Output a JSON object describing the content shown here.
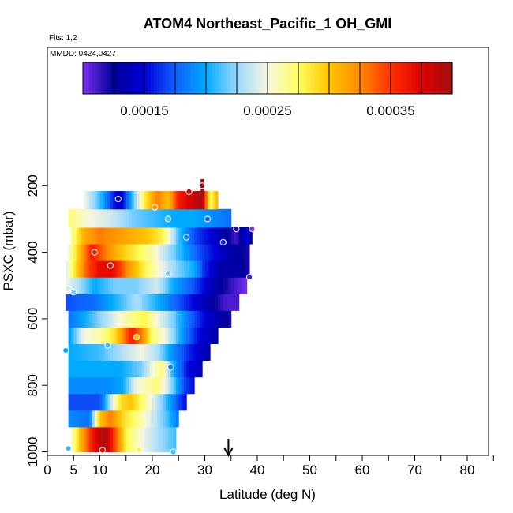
{
  "chart_data": {
    "type": "heatmap",
    "title": "ATOM4 Northeast_Pacific_1 OH_GMI",
    "flights_label": "Flts: 1,2",
    "date_label": "MMDD: 0424,0427",
    "xlabel": "Latitude (deg N)",
    "ylabel": "PSXC (mbar)",
    "xlim": [
      0,
      85
    ],
    "ylim": [
      1000,
      100
    ],
    "x_ticks": [
      0,
      5,
      10,
      20,
      30,
      40,
      50,
      60,
      70,
      80
    ],
    "x_tick_labels": [
      "0",
      "5",
      "10",
      "20",
      "30",
      "40",
      "50",
      "60",
      "70",
      "80"
    ],
    "x_minor_ticks": [
      15,
      25,
      35,
      45,
      55,
      65,
      75,
      85
    ],
    "y_ticks": [
      200,
      400,
      600,
      800,
      1000
    ],
    "y_tick_labels": [
      "200",
      "400",
      "600",
      "800",
      "1000"
    ],
    "colorbar": {
      "min": 0.0001,
      "max": 0.0004,
      "tick_values": [
        0.00015,
        0.00025,
        0.00035
      ],
      "tick_labels": [
        "0.00015",
        "0.00025",
        "0.00035"
      ],
      "colors": [
        "#7b2ff2",
        "#00009a",
        "#0000d8",
        "#1060ff",
        "#00aaff",
        "#9ad8ff",
        "#f6f6e0",
        "#ffff60",
        "#ffc400",
        "#ff8c00",
        "#ff3000",
        "#e00000",
        "#a01010"
      ]
    },
    "rows": [
      {
        "p": 950,
        "lat_min": 4.5,
        "lat_max": 24.5,
        "cols": [
          [
            4.5,
            0.00025
          ],
          [
            6.5,
            0.00031
          ],
          [
            9.0,
            0.00037
          ],
          [
            11.0,
            0.0004
          ],
          [
            13.0,
            0.00034
          ],
          [
            15.0,
            0.00028
          ],
          [
            18.0,
            0.00025
          ],
          [
            21.0,
            0.00023
          ],
          [
            24.5,
            0.00021
          ]
        ]
      },
      {
        "p": 900,
        "lat_min": 4.0,
        "lat_max": 25.0,
        "cols": [
          [
            4.0,
            0.00019
          ],
          [
            8.0,
            0.00018
          ],
          [
            10.0,
            0.0003
          ],
          [
            12.0,
            0.00033
          ],
          [
            14.5,
            0.00029
          ],
          [
            17.0,
            0.00027
          ],
          [
            20.0,
            0.00024
          ],
          [
            23.0,
            0.00021
          ],
          [
            25.0,
            0.00018
          ]
        ]
      },
      {
        "p": 850,
        "lat_min": 4.0,
        "lat_max": 26.5,
        "cols": [
          [
            4.0,
            0.00017
          ],
          [
            10.0,
            0.00017
          ],
          [
            12.0,
            0.00023
          ],
          [
            14.0,
            0.00029
          ],
          [
            16.0,
            0.0003
          ],
          [
            19.0,
            0.00026
          ],
          [
            22.0,
            0.00022
          ],
          [
            25.0,
            0.00017
          ],
          [
            26.5,
            0.00015
          ]
        ]
      },
      {
        "p": 800,
        "lat_min": 4.0,
        "lat_max": 28.0,
        "cols": [
          [
            4.0,
            0.00019
          ],
          [
            12.0,
            0.00019
          ],
          [
            14.5,
            0.0002
          ],
          [
            17.0,
            0.00025
          ],
          [
            19.0,
            0.00026
          ],
          [
            21.0,
            0.00027
          ],
          [
            23.0,
            0.00024
          ],
          [
            26.0,
            0.00017
          ],
          [
            28.0,
            0.00015
          ]
        ]
      },
      {
        "p": 750,
        "lat_min": 4.0,
        "lat_max": 29.5,
        "cols": [
          [
            4.0,
            0.0002
          ],
          [
            14.0,
            0.0002
          ],
          [
            18.0,
            0.00022
          ],
          [
            20.0,
            0.00025
          ],
          [
            22.0,
            0.00027
          ],
          [
            24.0,
            0.0002
          ],
          [
            27.0,
            0.00015
          ],
          [
            29.5,
            0.00014
          ]
        ]
      },
      {
        "p": 700,
        "lat_min": 4.0,
        "lat_max": 31.0,
        "cols": [
          [
            4.0,
            0.0002
          ],
          [
            10.0,
            0.00021
          ],
          [
            14.0,
            0.00023
          ],
          [
            18.0,
            0.00025
          ],
          [
            21.0,
            0.00023
          ],
          [
            24.0,
            0.00019
          ],
          [
            27.0,
            0.00016
          ],
          [
            31.0,
            0.00013
          ]
        ]
      },
      {
        "p": 650,
        "lat_min": 4.0,
        "lat_max": 32.5,
        "cols": [
          [
            4.0,
            0.00019
          ],
          [
            7.0,
            0.00025
          ],
          [
            10.0,
            0.00026
          ],
          [
            13.0,
            0.00029
          ],
          [
            16.0,
            0.00036
          ],
          [
            18.0,
            0.00033
          ],
          [
            20.0,
            0.00027
          ],
          [
            22.5,
            0.00025
          ],
          [
            26.0,
            0.00019
          ],
          [
            29.0,
            0.00015
          ],
          [
            32.5,
            0.00013
          ]
        ]
      },
      {
        "p": 600,
        "lat_min": 4.0,
        "lat_max": 35.0,
        "cols": [
          [
            4.0,
            0.00018
          ],
          [
            7.0,
            0.0002
          ],
          [
            11.0,
            0.00023
          ],
          [
            15.0,
            0.00026
          ],
          [
            18.5,
            0.00028
          ],
          [
            21.0,
            0.00025
          ],
          [
            24.0,
            0.00022
          ],
          [
            27.0,
            0.00018
          ],
          [
            30.0,
            0.00015
          ],
          [
            33.0,
            0.00013
          ],
          [
            35.0,
            0.00012
          ]
        ]
      },
      {
        "p": 550,
        "lat_min": 3.5,
        "lat_max": 36.5,
        "cols": [
          [
            3.5,
            0.00017
          ],
          [
            9.0,
            0.00018
          ],
          [
            14.0,
            0.00021
          ],
          [
            17.0,
            0.00023
          ],
          [
            20.0,
            0.00021
          ],
          [
            24.0,
            0.00018
          ],
          [
            28.0,
            0.00015
          ],
          [
            31.0,
            0.00013
          ],
          [
            34.0,
            0.00011
          ],
          [
            36.5,
            0.00011
          ]
        ]
      },
      {
        "p": 500,
        "lat_min": 3.5,
        "lat_max": 38.0,
        "cols": [
          [
            3.5,
            0.00025
          ],
          [
            6.0,
            0.00023
          ],
          [
            9.0,
            0.0002
          ],
          [
            13.0,
            0.00022
          ],
          [
            17.0,
            0.00022
          ],
          [
            21.0,
            0.00024
          ],
          [
            24.0,
            0.0002
          ],
          [
            28.0,
            0.00017
          ],
          [
            31.0,
            0.00014
          ],
          [
            34.0,
            0.00012
          ],
          [
            38.0,
            0.0001
          ]
        ]
      },
      {
        "p": 450,
        "lat_min": 3.5,
        "lat_max": 38.5,
        "cols": [
          [
            3.5,
            0.00024
          ],
          [
            5.0,
            0.00028
          ],
          [
            7.5,
            0.00034
          ],
          [
            10.0,
            0.00037
          ],
          [
            12.5,
            0.00037
          ],
          [
            15.5,
            0.00032
          ],
          [
            18.5,
            0.00028
          ],
          [
            21.5,
            0.00025
          ],
          [
            25.0,
            0.00022
          ],
          [
            28.0,
            0.0002
          ],
          [
            30.0,
            0.00016
          ],
          [
            33.0,
            0.00013
          ],
          [
            36.0,
            0.00013
          ],
          [
            38.5,
            0.00012
          ]
        ]
      },
      {
        "p": 400,
        "lat_min": 4.0,
        "lat_max": 38.5,
        "cols": [
          [
            4.0,
            0.00025
          ],
          [
            6.0,
            0.0003
          ],
          [
            8.5,
            0.00036
          ],
          [
            11.0,
            0.00033
          ],
          [
            14.0,
            0.0003
          ],
          [
            17.0,
            0.00028
          ],
          [
            20.0,
            0.00026
          ],
          [
            23.0,
            0.00023
          ],
          [
            26.0,
            0.0002
          ],
          [
            29.0,
            0.00017
          ],
          [
            32.0,
            0.00015
          ],
          [
            35.0,
            0.00013
          ],
          [
            38.5,
            0.00012
          ]
        ]
      },
      {
        "p": 350,
        "lat_min": 4.5,
        "lat_max": 39.0,
        "cols": [
          [
            4.5,
            0.00026
          ],
          [
            7.0,
            0.00031
          ],
          [
            10.0,
            0.00033
          ],
          [
            13.0,
            0.00032
          ],
          [
            16.0,
            0.00031
          ],
          [
            19.0,
            0.0003
          ],
          [
            22.0,
            0.00028
          ],
          [
            25.0,
            0.00021
          ],
          [
            28.0,
            0.00017
          ],
          [
            31.0,
            0.00015
          ],
          [
            34.0,
            0.00013
          ],
          [
            36.0,
            0.00011
          ],
          [
            38.0,
            0.00015
          ],
          [
            39.0,
            0.00012
          ]
        ]
      },
      {
        "p": 300,
        "lat_min": 4.0,
        "lat_max": 35.0,
        "cols": [
          [
            4.0,
            0.00027
          ],
          [
            8.0,
            0.00025
          ],
          [
            12.0,
            0.00024
          ],
          [
            16.0,
            0.00022
          ],
          [
            20.0,
            0.00021
          ],
          [
            24.0,
            0.0002
          ],
          [
            28.0,
            0.0002
          ],
          [
            31.0,
            0.00019
          ],
          [
            35.0,
            0.00018
          ]
        ]
      },
      {
        "p": 240,
        "lat_min": 7.0,
        "lat_max": 32.5,
        "cols": [
          [
            7.0,
            0.00025
          ],
          [
            10.0,
            0.00021
          ],
          [
            12.5,
            0.00016
          ],
          [
            14.0,
            0.00014
          ],
          [
            16.0,
            0.0002
          ],
          [
            18.5,
            0.00028
          ],
          [
            21.0,
            0.00033
          ],
          [
            23.0,
            0.0003
          ],
          [
            25.0,
            0.00036
          ],
          [
            27.5,
            0.00038
          ],
          [
            29.5,
            0.0004
          ],
          [
            31.0,
            0.00027
          ],
          [
            32.5,
            0.00031
          ]
        ]
      },
      {
        "p": 200,
        "lat_min": 29.2,
        "lat_max": 29.8,
        "cols": [
          [
            29.2,
            0.0004
          ],
          [
            29.8,
            0.0004
          ]
        ]
      }
    ],
    "points": [
      {
        "lat": 4.0,
        "p": 990,
        "v": 0.00021
      },
      {
        "lat": 10.5,
        "p": 995,
        "v": 0.00037
      },
      {
        "lat": 17.5,
        "p": 995,
        "v": 0.00028
      },
      {
        "lat": 24.0,
        "p": 1000,
        "v": 0.00021
      },
      {
        "lat": 3.5,
        "p": 695,
        "v": 0.0002
      },
      {
        "lat": 11.5,
        "p": 680,
        "v": 0.00021
      },
      {
        "lat": 17.0,
        "p": 655,
        "v": 0.0003
      },
      {
        "lat": 23.5,
        "p": 745,
        "v": 0.00019
      },
      {
        "lat": 4.0,
        "p": 510,
        "v": 0.00024
      },
      {
        "lat": 5.0,
        "p": 520,
        "v": 0.00022
      },
      {
        "lat": 23.0,
        "p": 465,
        "v": 0.00022
      },
      {
        "lat": 38.5,
        "p": 475,
        "v": 0.00011
      },
      {
        "lat": 12.0,
        "p": 440,
        "v": 0.00037
      },
      {
        "lat": 9.0,
        "p": 400,
        "v": 0.00036
      },
      {
        "lat": 33.5,
        "p": 370,
        "v": 0.00016
      },
      {
        "lat": 26.5,
        "p": 355,
        "v": 0.00019
      },
      {
        "lat": 36.0,
        "p": 330,
        "v": 0.00012
      },
      {
        "lat": 39.0,
        "p": 330,
        "v": 0.0001
      },
      {
        "lat": 23.0,
        "p": 300,
        "v": 0.00021
      },
      {
        "lat": 30.5,
        "p": 300,
        "v": 0.00018
      },
      {
        "lat": 20.5,
        "p": 265,
        "v": 0.00032
      },
      {
        "lat": 13.5,
        "p": 240,
        "v": 0.00015
      },
      {
        "lat": 27.0,
        "p": 218,
        "v": 0.00038
      },
      {
        "lat": 29.5,
        "p": 200,
        "v": 0.0004
      }
    ],
    "arrow_lat": 34.5
  }
}
